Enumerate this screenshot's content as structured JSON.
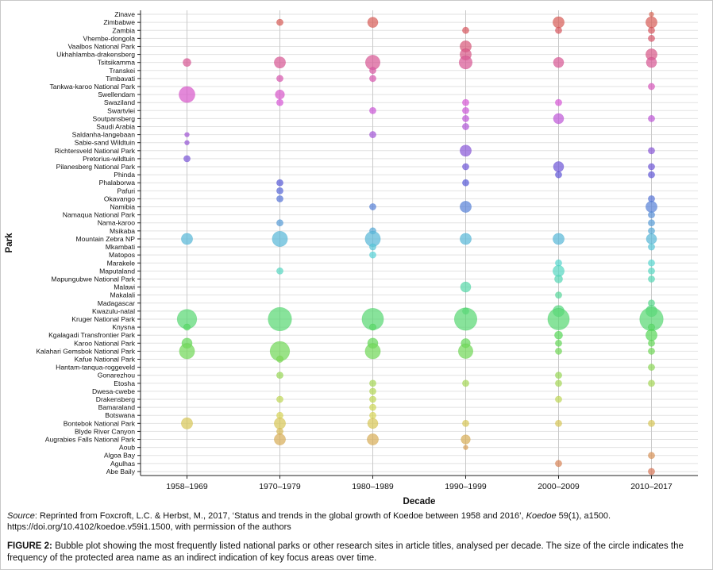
{
  "figure": {
    "source": {
      "label": "Source",
      "text_1": ": Reprinted from Foxcroft, L.C. & Herbst, M., 2017, ‘Status and trends in the global growth of Koedoe between 1958 and 2016’, ",
      "journal": "Koedoe",
      "text_2": " 59(1), a1500. https://doi.org/10.4102/koedoe.v59i1.1500, with permission of the authors"
    },
    "caption": {
      "label": "FIGURE 2:",
      "text": " Bubble plot showing the most frequently listed national parks or other research sites in article titles, analysed per decade. The size of the circle indicates the frequency of the protected area name as an indirect indication of key focus areas over time."
    }
  },
  "chart_data": {
    "type": "scatter",
    "variant": "bubble",
    "title": "",
    "xlabel": "Decade",
    "ylabel": "Park",
    "grid": true,
    "legend": "none",
    "size_note": "Circle area proportional to estimated frequency of park name in article titles; 0 = no bubble. Values estimated from bubble sizes.",
    "color_scheme": "categorical hue per park (ggplot-style), alphabetical from salmon (Abe Baily) through orange, green, teal, blue, purple to pink (Zinave)",
    "x_categories": [
      "1958–1969",
      "1970–1979",
      "1980–1989",
      "1990–1999",
      "2000–2009",
      "2010–2017"
    ],
    "series": [
      {
        "name": "Zinave",
        "values": [
          0,
          0,
          0,
          0,
          0,
          1
        ]
      },
      {
        "name": "Zimbabwe",
        "values": [
          0,
          2,
          5,
          0,
          6,
          6
        ]
      },
      {
        "name": "Zambia",
        "values": [
          0,
          0,
          0,
          2,
          2,
          2
        ]
      },
      {
        "name": "Vhembe-dongola",
        "values": [
          0,
          0,
          0,
          0,
          0,
          2
        ]
      },
      {
        "name": "Vaalbos National Park",
        "values": [
          0,
          0,
          0,
          6,
          0,
          0
        ]
      },
      {
        "name": "Ukhahlamba-drakensberg",
        "values": [
          0,
          0,
          0,
          6,
          0,
          6
        ]
      },
      {
        "name": "Tsitsikamma",
        "values": [
          3,
          6,
          10,
          8,
          5,
          5
        ]
      },
      {
        "name": "Transkei",
        "values": [
          0,
          0,
          2,
          0,
          0,
          0
        ]
      },
      {
        "name": "Timbavati",
        "values": [
          0,
          2,
          2,
          0,
          0,
          0
        ]
      },
      {
        "name": "Tankwa-karoo National Park",
        "values": [
          0,
          0,
          0,
          0,
          0,
          2
        ]
      },
      {
        "name": "Swellendam",
        "values": [
          12,
          4,
          0,
          0,
          0,
          0
        ]
      },
      {
        "name": "Swaziland",
        "values": [
          0,
          2,
          0,
          2,
          2,
          0
        ]
      },
      {
        "name": "Swartvlei",
        "values": [
          0,
          0,
          2,
          2,
          0,
          0
        ]
      },
      {
        "name": "Soutpansberg",
        "values": [
          0,
          0,
          0,
          2,
          5,
          2
        ]
      },
      {
        "name": "Saudi Arabia",
        "values": [
          0,
          0,
          0,
          2,
          0,
          0
        ]
      },
      {
        "name": "Saldanha-langebaan",
        "values": [
          1,
          0,
          2,
          0,
          0,
          0
        ]
      },
      {
        "name": "Sabie-sand Wildtuin",
        "values": [
          1,
          0,
          0,
          0,
          0,
          0
        ]
      },
      {
        "name": "Richtersveld National Park",
        "values": [
          0,
          0,
          0,
          6,
          0,
          2
        ]
      },
      {
        "name": "Pretorius-wildtuin",
        "values": [
          2,
          0,
          0,
          0,
          0,
          0
        ]
      },
      {
        "name": "Pilanesberg National Park",
        "values": [
          0,
          0,
          0,
          2,
          5,
          2
        ]
      },
      {
        "name": "Phinda",
        "values": [
          0,
          0,
          0,
          0,
          2,
          2
        ]
      },
      {
        "name": "Phalaborwa",
        "values": [
          0,
          2,
          0,
          2,
          0,
          0
        ]
      },
      {
        "name": "Pafuri",
        "values": [
          0,
          2,
          0,
          0,
          0,
          0
        ]
      },
      {
        "name": "Okavango",
        "values": [
          0,
          2,
          0,
          0,
          0,
          2
        ]
      },
      {
        "name": "Namibia",
        "values": [
          0,
          0,
          2,
          6,
          0,
          6
        ]
      },
      {
        "name": "Namaqua National Park",
        "values": [
          0,
          0,
          0,
          0,
          0,
          2
        ]
      },
      {
        "name": "Nama-karoo",
        "values": [
          0,
          2,
          0,
          0,
          0,
          2
        ]
      },
      {
        "name": "Msikaba",
        "values": [
          0,
          0,
          2,
          0,
          0,
          2
        ]
      },
      {
        "name": "Mountain Zebra NP",
        "values": [
          6,
          11,
          11,
          6,
          6,
          5
        ]
      },
      {
        "name": "Mkambati",
        "values": [
          0,
          0,
          2,
          0,
          0,
          2
        ]
      },
      {
        "name": "Matopos",
        "values": [
          0,
          0,
          2,
          0,
          0,
          0
        ]
      },
      {
        "name": "Marakele",
        "values": [
          0,
          0,
          0,
          0,
          2,
          2
        ]
      },
      {
        "name": "Maputaland",
        "values": [
          0,
          2,
          0,
          0,
          6,
          2
        ]
      },
      {
        "name": "Mapungubwe National Park",
        "values": [
          0,
          0,
          0,
          0,
          3,
          2
        ]
      },
      {
        "name": "Malawi",
        "values": [
          0,
          0,
          0,
          5,
          0,
          0
        ]
      },
      {
        "name": "Makalali",
        "values": [
          0,
          0,
          0,
          0,
          2,
          0
        ]
      },
      {
        "name": "Madagascar",
        "values": [
          0,
          0,
          0,
          0,
          0,
          2
        ]
      },
      {
        "name": "Kwazulu-natal",
        "values": [
          0,
          0,
          0,
          2,
          6,
          6
        ]
      },
      {
        "name": "Kruger National Park",
        "values": [
          18,
          26,
          22,
          24,
          22,
          26
        ]
      },
      {
        "name": "Knysna",
        "values": [
          2,
          0,
          2,
          0,
          0,
          2
        ]
      },
      {
        "name": "Kgalagadi Transfrontier Park",
        "values": [
          0,
          0,
          0,
          0,
          3,
          6
        ]
      },
      {
        "name": "Karoo National Park",
        "values": [
          5,
          0,
          5,
          4,
          2,
          2
        ]
      },
      {
        "name": "Kalahari Gemsbok National Park",
        "values": [
          11,
          18,
          11,
          10,
          2,
          2
        ]
      },
      {
        "name": "Kafue National Park",
        "values": [
          0,
          2,
          0,
          0,
          0,
          0
        ]
      },
      {
        "name": "Hantam-tanqua-roggeveld",
        "values": [
          0,
          0,
          0,
          0,
          0,
          2
        ]
      },
      {
        "name": "Gonarezhou",
        "values": [
          0,
          2,
          0,
          0,
          2,
          0
        ]
      },
      {
        "name": "Etosha",
        "values": [
          0,
          0,
          2,
          2,
          2,
          2
        ]
      },
      {
        "name": "Dwesa-cwebe",
        "values": [
          0,
          0,
          2,
          0,
          0,
          0
        ]
      },
      {
        "name": "Drakensberg",
        "values": [
          0,
          2,
          2,
          0,
          2,
          0
        ]
      },
      {
        "name": "Bamaraland",
        "values": [
          0,
          0,
          2,
          0,
          0,
          0
        ]
      },
      {
        "name": "Botswana",
        "values": [
          0,
          2,
          2,
          0,
          0,
          0
        ]
      },
      {
        "name": "Bontebok National Park",
        "values": [
          6,
          6,
          5,
          2,
          2,
          2
        ]
      },
      {
        "name": "Blyde River Canyon",
        "values": [
          0,
          2,
          0,
          0,
          0,
          0
        ]
      },
      {
        "name": "Augrabies Falls National Park",
        "values": [
          0,
          6,
          6,
          4,
          0,
          0
        ]
      },
      {
        "name": "Aoub",
        "values": [
          0,
          0,
          0,
          1,
          0,
          0
        ]
      },
      {
        "name": "Algoa Bay",
        "values": [
          0,
          0,
          0,
          0,
          0,
          2
        ]
      },
      {
        "name": "Agulhas",
        "values": [
          0,
          0,
          0,
          0,
          2,
          0
        ]
      },
      {
        "name": "Abe Baily",
        "values": [
          0,
          0,
          0,
          0,
          0,
          2
        ]
      }
    ]
  }
}
